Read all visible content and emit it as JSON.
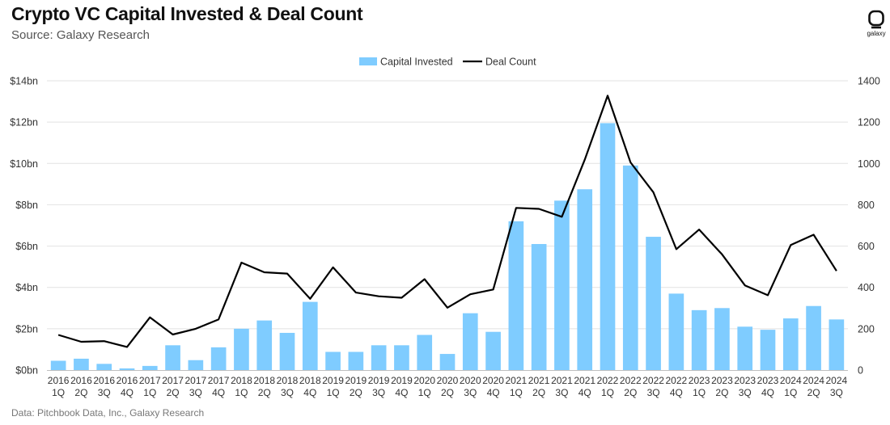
{
  "header": {
    "title": "Crypto VC Capital Invested & Deal Count",
    "subtitle": "Source: Galaxy Research"
  },
  "footer": {
    "note": "Data: Pitchbook Data, Inc., Galaxy Research"
  },
  "logo": {
    "text": "galaxy",
    "icon": "galaxy-logo-icon"
  },
  "colors": {
    "bar": "#7fccff",
    "line": "#000000",
    "grid": "#e2e2e2",
    "axis": "#bfbfbf"
  },
  "chart_data": {
    "type": "bar",
    "combo": "bar-line-dual-axis",
    "legend_position": "top-center",
    "grid": true,
    "categories": [
      [
        "2016",
        "1Q"
      ],
      [
        "2016",
        "2Q"
      ],
      [
        "2016",
        "3Q"
      ],
      [
        "2016",
        "4Q"
      ],
      [
        "2017",
        "1Q"
      ],
      [
        "2017",
        "2Q"
      ],
      [
        "2017",
        "3Q"
      ],
      [
        "2017",
        "4Q"
      ],
      [
        "2018",
        "1Q"
      ],
      [
        "2018",
        "2Q"
      ],
      [
        "2018",
        "3Q"
      ],
      [
        "2018",
        "4Q"
      ],
      [
        "2019",
        "1Q"
      ],
      [
        "2019",
        "2Q"
      ],
      [
        "2019",
        "3Q"
      ],
      [
        "2019",
        "4Q"
      ],
      [
        "2020",
        "1Q"
      ],
      [
        "2020",
        "2Q"
      ],
      [
        "2020",
        "3Q"
      ],
      [
        "2020",
        "4Q"
      ],
      [
        "2021",
        "1Q"
      ],
      [
        "2021",
        "2Q"
      ],
      [
        "2021",
        "3Q"
      ],
      [
        "2021",
        "4Q"
      ],
      [
        "2022",
        "1Q"
      ],
      [
        "2022",
        "2Q"
      ],
      [
        "2022",
        "3Q"
      ],
      [
        "2022",
        "4Q"
      ],
      [
        "2023",
        "1Q"
      ],
      [
        "2023",
        "2Q"
      ],
      [
        "2023",
        "3Q"
      ],
      [
        "2023",
        "4Q"
      ],
      [
        "2024",
        "1Q"
      ],
      [
        "2024",
        "2Q"
      ],
      [
        "2024",
        "3Q"
      ]
    ],
    "series": [
      {
        "name": "Capital Invested",
        "type": "bar",
        "axis": "left",
        "values": [
          0.45,
          0.55,
          0.3,
          0.08,
          0.2,
          1.2,
          0.48,
          1.1,
          2.0,
          2.4,
          1.8,
          3.3,
          0.88,
          0.88,
          1.2,
          1.2,
          1.7,
          0.78,
          2.75,
          1.85,
          7.2,
          6.1,
          8.2,
          8.75,
          11.95,
          9.9,
          6.45,
          3.7,
          2.9,
          3.0,
          2.1,
          1.95,
          2.5,
          3.1,
          2.45
        ]
      },
      {
        "name": "Deal Count",
        "type": "line",
        "axis": "right",
        "values": [
          170,
          137,
          140,
          112,
          255,
          172,
          200,
          245,
          520,
          473,
          467,
          345,
          497,
          375,
          357,
          350,
          440,
          302,
          367,
          390,
          785,
          780,
          742,
          1018,
          1328,
          1005,
          860,
          585,
          680,
          560,
          410,
          362,
          605,
          655,
          480
        ]
      }
    ],
    "y_left": {
      "min": 0,
      "max": 14,
      "step": 2,
      "tick_labels": [
        "$0bn",
        "$2bn",
        "$4bn",
        "$6bn",
        "$8bn",
        "$10bn",
        "$12bn",
        "$14bn"
      ]
    },
    "y_right": {
      "min": 0,
      "max": 1400,
      "step": 200,
      "tick_labels": [
        "0",
        "200",
        "400",
        "600",
        "800",
        "1000",
        "1200",
        "1400"
      ]
    }
  }
}
